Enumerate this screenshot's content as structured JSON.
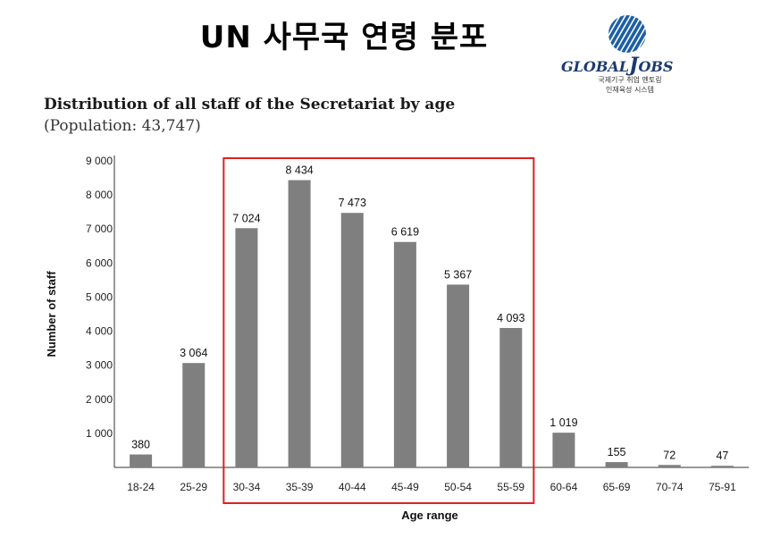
{
  "slide": {
    "title": "UN 사무국 연령 분포"
  },
  "logo": {
    "brand_prefix": "GLOBAL",
    "brand_initial": "J",
    "brand_suffix": "OBS",
    "tagline_1": "국제기구 취업 멘토링",
    "tagline_2": "인재육성 시스템",
    "color": "#1d5fa8"
  },
  "chart_data": {
    "type": "bar",
    "title": "Distribution of all staff of the Secretariat by age",
    "subtitle": "(Population: 43,747)",
    "xlabel": "Age range",
    "ylabel": "Number of staff",
    "categories": [
      "18-24",
      "25-29",
      "30-34",
      "35-39",
      "40-44",
      "45-49",
      "50-54",
      "55-59",
      "60-64",
      "65-69",
      "70-74",
      "75-91"
    ],
    "values": [
      380,
      3064,
      7024,
      8434,
      7473,
      6619,
      5367,
      4093,
      1019,
      155,
      72,
      47
    ],
    "value_labels": [
      "380",
      "3 064",
      "7 024",
      "8 434",
      "7 473",
      "6 619",
      "5 367",
      "4 093",
      "1 019",
      "155",
      "72",
      "47"
    ],
    "yticks": [
      1000,
      2000,
      3000,
      4000,
      5000,
      6000,
      7000,
      8000,
      9000
    ],
    "ytick_labels": [
      "1 000",
      "2 000",
      "3 000",
      "4 000",
      "5 000",
      "6 000",
      "7 000",
      "8 000",
      "9 000"
    ],
    "ylim": [
      0,
      9000
    ],
    "grid": false,
    "bar_color": "#7f7f7f",
    "highlight": {
      "from": "30-34",
      "to": "55-59",
      "color": "#e02020"
    }
  }
}
